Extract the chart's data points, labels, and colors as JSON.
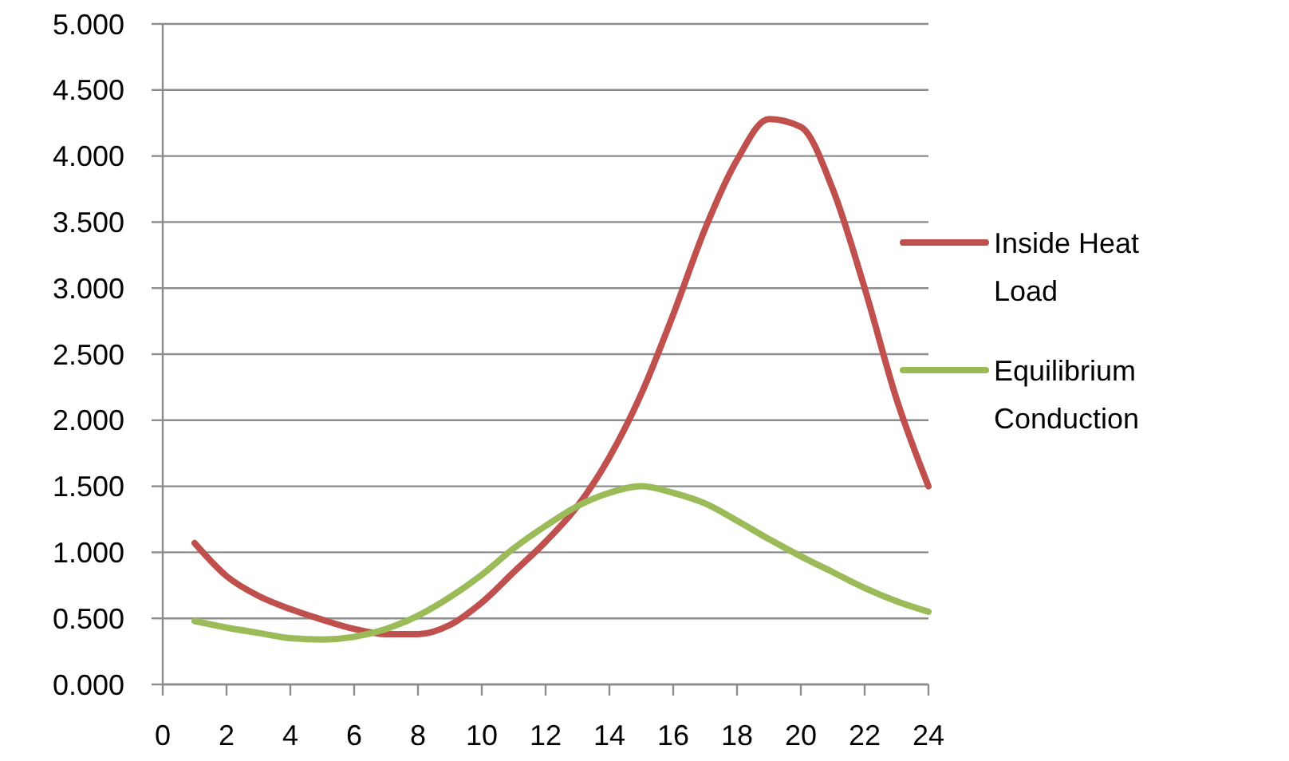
{
  "chart_data": {
    "type": "line",
    "x": [
      1,
      2,
      3,
      4,
      5,
      6,
      7,
      8,
      9,
      10,
      11,
      12,
      13,
      14,
      15,
      16,
      17,
      18,
      19,
      20,
      21,
      22,
      23,
      24
    ],
    "series": [
      {
        "name": "Inside Heat Load",
        "color": "#c0504d",
        "values": [
          1.07,
          0.82,
          0.67,
          0.57,
          0.49,
          0.42,
          0.38,
          0.38,
          0.45,
          0.62,
          0.85,
          1.08,
          1.35,
          1.72,
          2.2,
          2.8,
          3.45,
          3.97,
          4.28,
          4.22,
          3.75,
          3.0,
          2.16,
          1.5
        ]
      },
      {
        "name": "Equilibrium Conduction",
        "color": "#9bbb59",
        "values": [
          0.48,
          0.43,
          0.39,
          0.35,
          0.34,
          0.36,
          0.42,
          0.52,
          0.66,
          0.83,
          1.03,
          1.2,
          1.35,
          1.45,
          1.5,
          1.45,
          1.37,
          1.24,
          1.1,
          0.97,
          0.85,
          0.73,
          0.63,
          0.55
        ]
      }
    ],
    "xlim": [
      0,
      24
    ],
    "xticks": [
      0,
      2,
      4,
      6,
      8,
      10,
      12,
      14,
      16,
      18,
      20,
      22,
      24
    ],
    "ylim": [
      0,
      5
    ],
    "yticks": [
      {
        "value": 0,
        "label": "0.000"
      },
      {
        "value": 0.5,
        "label": "0.500"
      },
      {
        "value": 1,
        "label": "1.000"
      },
      {
        "value": 1.5,
        "label": "1.500"
      },
      {
        "value": 2,
        "label": "2.000"
      },
      {
        "value": 2.5,
        "label": "2.500"
      },
      {
        "value": 3,
        "label": "3.000"
      },
      {
        "value": 3.5,
        "label": "3.500"
      },
      {
        "value": 4,
        "label": "4.000"
      },
      {
        "value": 4.5,
        "label": "4.500"
      },
      {
        "value": 5,
        "label": "5.000"
      }
    ],
    "grid": "y",
    "legend": "right",
    "marker": "none",
    "line_style": "solid"
  }
}
